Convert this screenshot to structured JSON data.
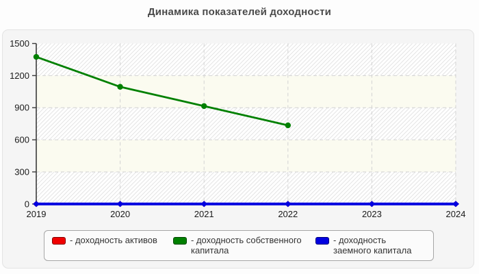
{
  "title": "Динамика показателей доходности",
  "chart_data": {
    "type": "line",
    "title": "Динамика показателей доходности",
    "x": [
      2019,
      2020,
      2021,
      2022,
      2023,
      2024
    ],
    "xlabel": "",
    "ylabel": "",
    "ylim": [
      0,
      1500
    ],
    "yticks": [
      0,
      300,
      600,
      900,
      1200,
      1500
    ],
    "grid": "dashed horizontal and vertical",
    "plot_background": "alternating horizontal bands: white with diagonal hatch / plain cream",
    "legend_position": "bottom",
    "series": [
      {
        "name": "доходность активов",
        "color": "#f00000",
        "marker": "diamond",
        "line_width": 3,
        "values": [
          0,
          0,
          0,
          0,
          0,
          0
        ],
        "note": "not visible — coincides with zero line, covered by blue series"
      },
      {
        "name": "доходность собственного капитала",
        "color": "#008000",
        "marker": "circle",
        "line_width": 2.8,
        "values": [
          1375,
          1095,
          915,
          735,
          null,
          null
        ]
      },
      {
        "name": "доходность заемного капитала",
        "color": "#0000e0",
        "marker": "diamond",
        "line_width": 4,
        "values": [
          0,
          0,
          0,
          0,
          0,
          0
        ]
      }
    ]
  },
  "legend": {
    "prefix": "- "
  },
  "colors": {
    "panel_bg": "#f5f5f5",
    "band_cream": "#fbfbf0",
    "hatch_line": "#e4e4e4",
    "gridline": "#d2d2d2",
    "axis": "#3a3a3a",
    "tick_text": "#1a1a1a",
    "title_text": "#4a4a4a"
  }
}
